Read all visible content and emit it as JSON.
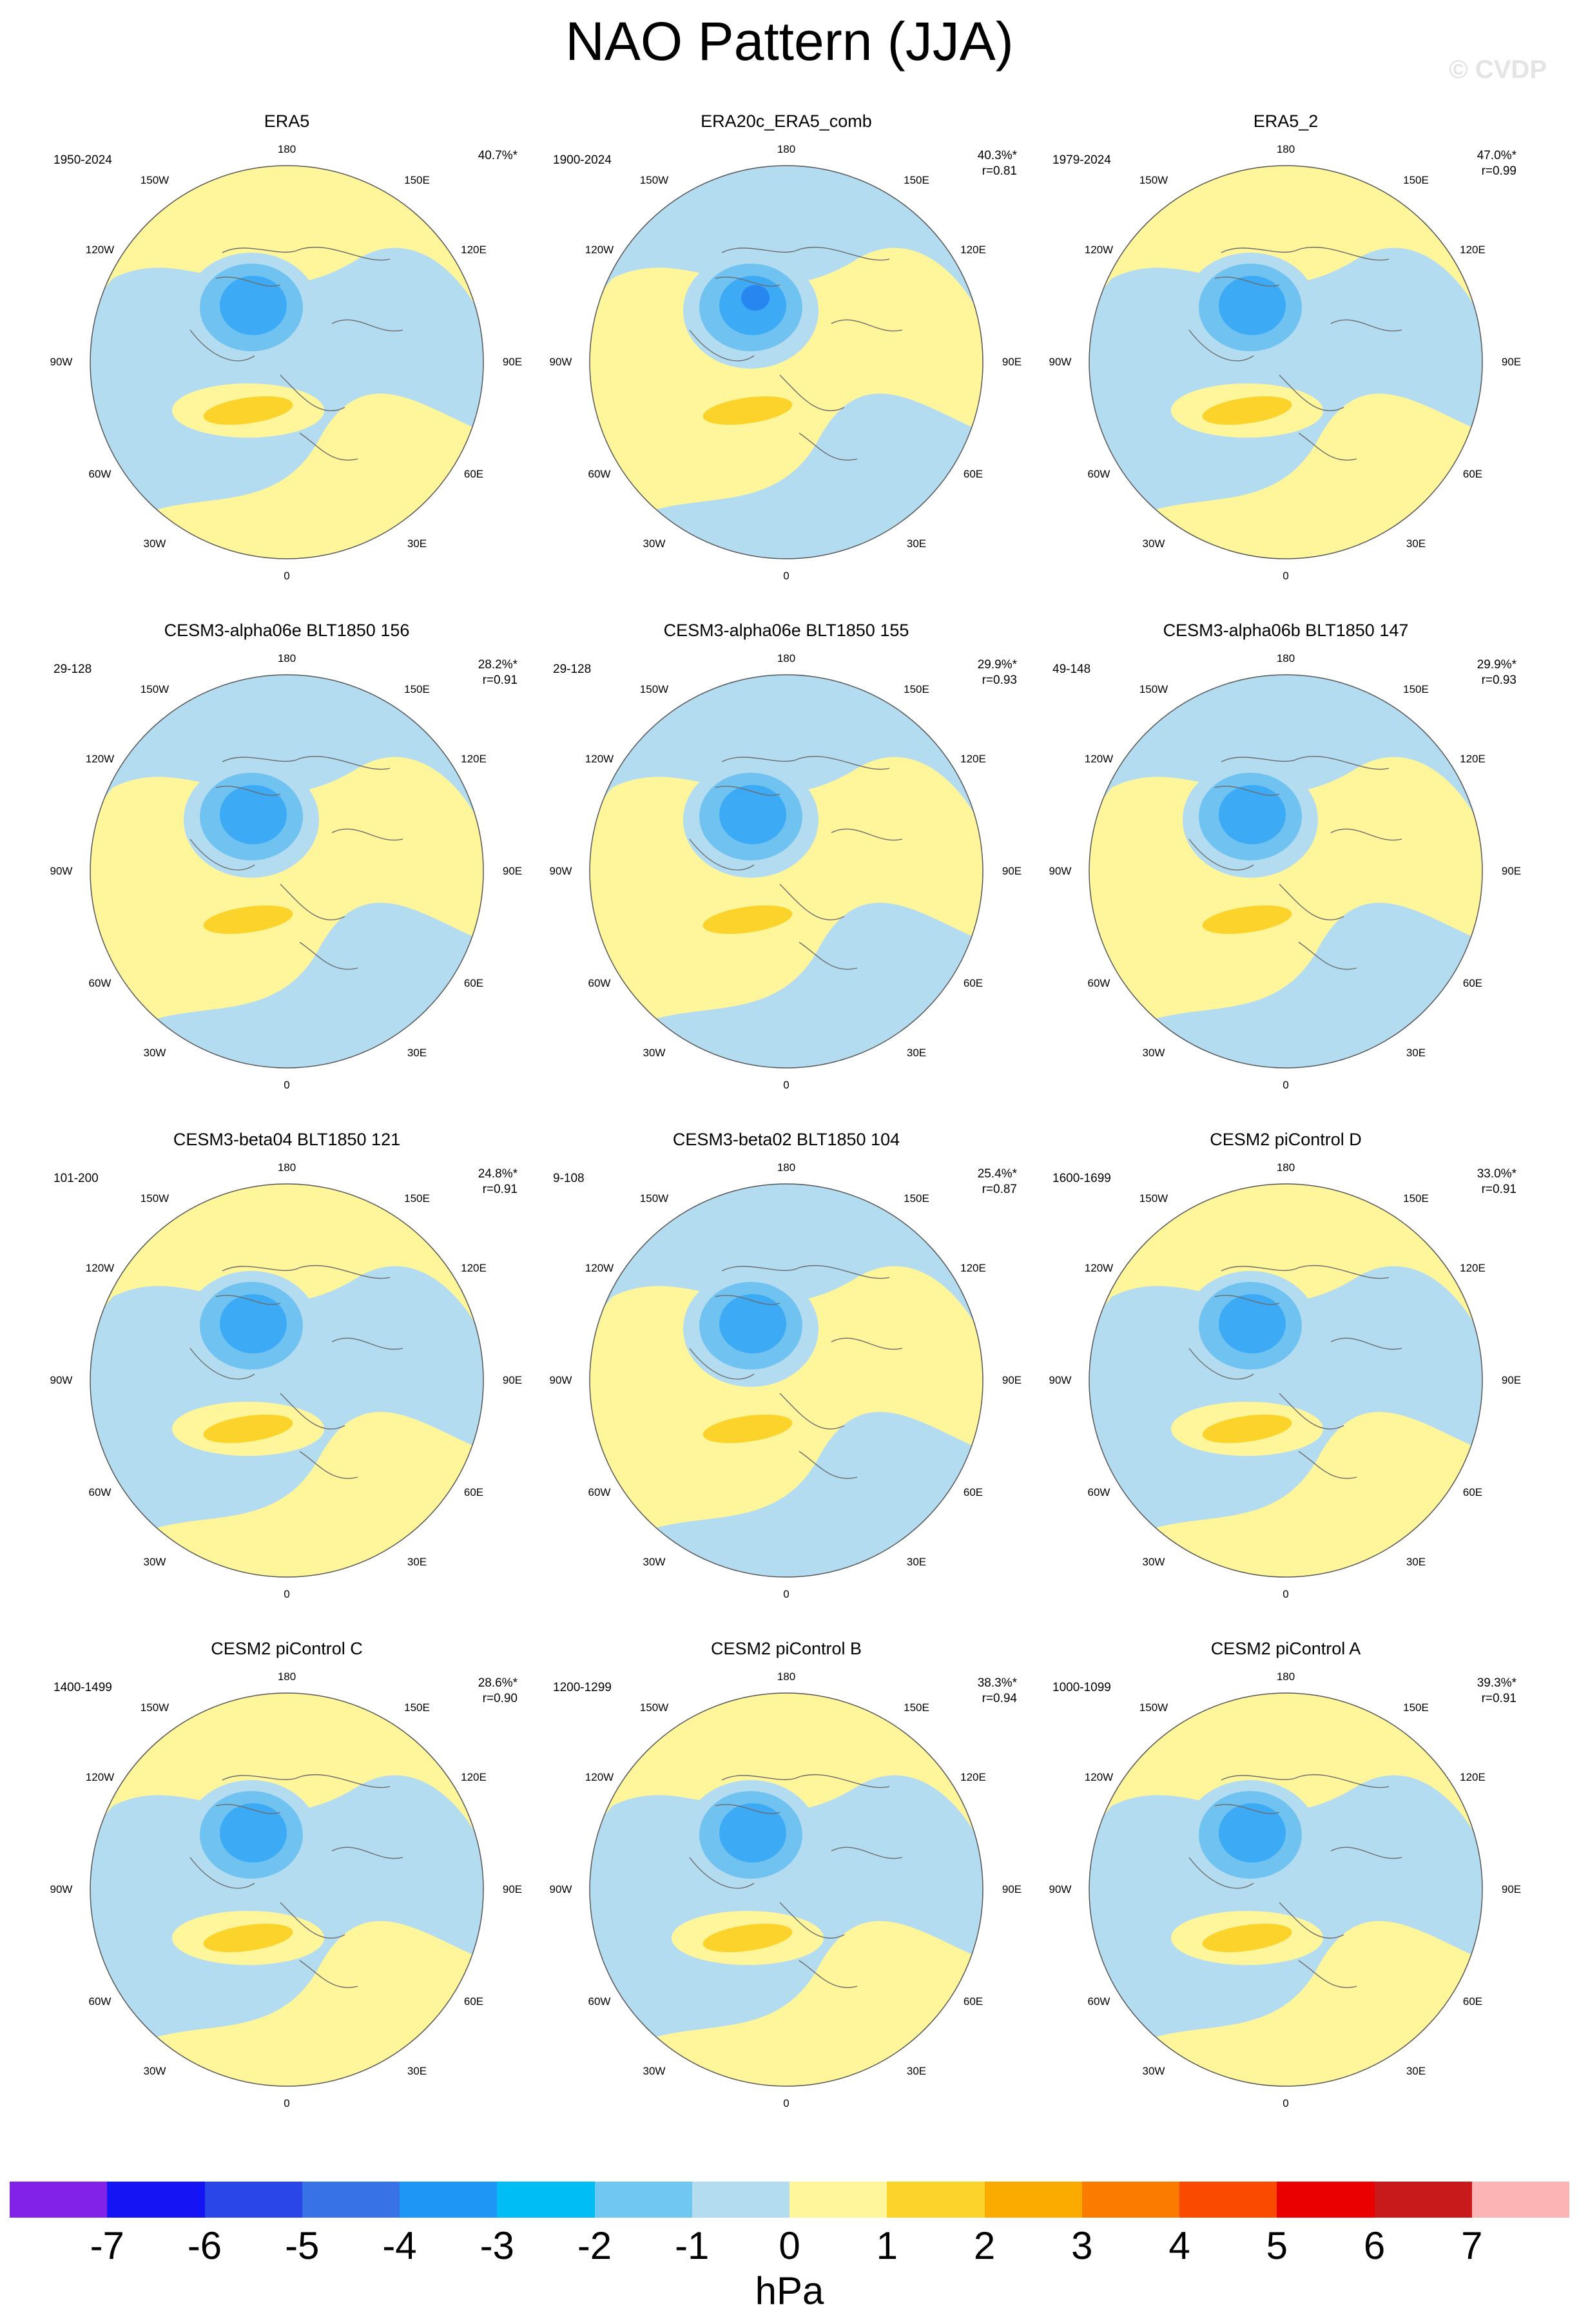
{
  "title": "NAO Pattern (JJA)",
  "watermark": "© CVDP",
  "axis_labels": {
    "top": "180",
    "bottom": "0",
    "left": "90W",
    "right": "90E",
    "upper_left_1": "150W",
    "upper_left_2": "120W",
    "upper_right_1": "150E",
    "upper_right_2": "120E",
    "lower_left_1": "60W",
    "lower_left_2": "30W",
    "lower_right_1": "60E",
    "lower_right_2": "30E"
  },
  "colors": {
    "ocean_ring": "#b4dcf0",
    "coast": "#6b6b6b",
    "pos_light": "#fff59b",
    "pos_mid": "#fcd32b",
    "neg_light": "#b4dcf0",
    "neg_2": "#70c3f0",
    "neg_3": "#3caaf5",
    "neg_4": "#2886f0"
  },
  "panels": [
    {
      "title": "ERA5",
      "years": "1950-2024",
      "pct": "40.7%*",
      "r": ""
    },
    {
      "title": "ERA20c_ERA5_comb",
      "years": "1900-2024",
      "pct": "40.3%*",
      "r": "r=0.81"
    },
    {
      "title": "ERA5_2",
      "years": "1979-2024",
      "pct": "47.0%*",
      "r": "r=0.99"
    },
    {
      "title": "CESM3-alpha06e BLT1850 156",
      "years": "29-128",
      "pct": "28.2%*",
      "r": "r=0.91"
    },
    {
      "title": "CESM3-alpha06e BLT1850 155",
      "years": "29-128",
      "pct": "29.9%*",
      "r": "r=0.93"
    },
    {
      "title": "CESM3-alpha06b BLT1850 147",
      "years": "49-148",
      "pct": "29.9%*",
      "r": "r=0.93"
    },
    {
      "title": "CESM3-beta04 BLT1850 121",
      "years": "101-200",
      "pct": "24.8%*",
      "r": "r=0.91"
    },
    {
      "title": "CESM3-beta02 BLT1850 104",
      "years": "9-108",
      "pct": "25.4%*",
      "r": "r=0.87"
    },
    {
      "title": "CESM2 piControl D",
      "years": "1600-1699",
      "pct": "33.0%*",
      "r": "r=0.91"
    },
    {
      "title": "CESM2 piControl C",
      "years": "1400-1499",
      "pct": "28.6%*",
      "r": "r=0.90"
    },
    {
      "title": "CESM2 piControl B",
      "years": "1200-1299",
      "pct": "38.3%*",
      "r": "r=0.94"
    },
    {
      "title": "CESM2 piControl A",
      "years": "1000-1099",
      "pct": "39.3%*",
      "r": "r=0.91"
    }
  ],
  "colorbar": {
    "colors": [
      "#8222e8",
      "#1414f5",
      "#2a46e8",
      "#3773e6",
      "#1e96f5",
      "#00bdf5",
      "#70c8f2",
      "#b4dcf0",
      "#fff59b",
      "#fcd32b",
      "#fbaa00",
      "#fb7a00",
      "#f94a00",
      "#ea0000",
      "#c81a1a",
      "#fcb4b4"
    ],
    "ticks": [
      "-7",
      "-6",
      "-5",
      "-4",
      "-3",
      "-2",
      "-1",
      "0",
      "1",
      "2",
      "3",
      "4",
      "5",
      "6",
      "7"
    ],
    "units": "hPa"
  }
}
